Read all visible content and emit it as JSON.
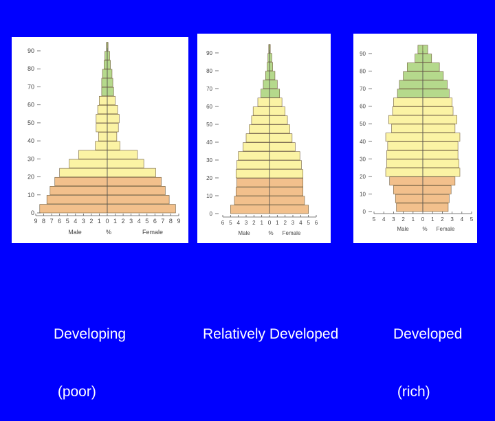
{
  "colors": {
    "background": "#0000ff",
    "panel": "#ffffff",
    "band_young": "#f2c08c",
    "band_adult": "#fbf3a4",
    "band_old": "#b5d98c",
    "outline": "#6e5a3a",
    "caption": "#ffffff"
  },
  "captions": [
    {
      "line1": "Developing",
      "line2": " (poor)"
    },
    {
      "line1": "Relatively Developed",
      "line2": ""
    },
    {
      "line1": "Developed",
      "line2": " (rich)"
    }
  ],
  "chart_data": [
    {
      "type": "bar",
      "orientation": "horizontal-population-pyramid",
      "x_unit": "%",
      "xlabel_left": "Male",
      "xlabel_center": "%",
      "xlabel_right": "Female",
      "x_ticks": [
        "9",
        "8",
        "7",
        "6",
        "5",
        "4",
        "3",
        "2",
        "1",
        "0",
        "1",
        "2",
        "3",
        "4",
        "5",
        "6",
        "7",
        "8",
        "9"
      ],
      "y_ticks": [
        "0",
        "10",
        "20",
        "30",
        "40",
        "50",
        "60",
        "70",
        "80",
        "90"
      ],
      "xlim": [
        -9,
        9
      ],
      "ylim": [
        0,
        90
      ],
      "age_groups": [
        "0-4",
        "5-9",
        "10-14",
        "15-19",
        "20-24",
        "25-29",
        "30-34",
        "35-39",
        "40-44",
        "45-49",
        "50-54",
        "55-59",
        "60-64",
        "65-69",
        "70-74",
        "75-79",
        "80-84",
        "85-89",
        "90+"
      ],
      "series": [
        {
          "name": "Male",
          "values": [
            8.5,
            7.6,
            7.2,
            6.6,
            6.0,
            4.8,
            3.6,
            1.5,
            1.1,
            1.4,
            1.4,
            1.2,
            1.0,
            0.7,
            0.7,
            0.6,
            0.4,
            0.3,
            0.1
          ]
        },
        {
          "name": "Female",
          "values": [
            8.6,
            7.8,
            7.3,
            6.8,
            6.1,
            4.6,
            3.8,
            1.6,
            1.2,
            1.4,
            1.5,
            1.3,
            1.0,
            0.8,
            0.7,
            0.6,
            0.4,
            0.3,
            0.1
          ]
        }
      ]
    },
    {
      "type": "bar",
      "orientation": "horizontal-population-pyramid",
      "x_unit": "%",
      "xlabel_left": "Male",
      "xlabel_center": "%",
      "xlabel_right": "Female",
      "x_ticks": [
        "6",
        "5",
        "4",
        "3",
        "2",
        "1",
        "0",
        "1",
        "2",
        "3",
        "4",
        "5",
        "6"
      ],
      "y_ticks": [
        "0",
        "10",
        "20",
        "30",
        "40",
        "50",
        "60",
        "70",
        "80",
        "90"
      ],
      "xlim": [
        -6,
        6
      ],
      "ylim": [
        0,
        90
      ],
      "age_groups": [
        "0-4",
        "5-9",
        "10-14",
        "15-19",
        "20-24",
        "25-29",
        "30-34",
        "35-39",
        "40-44",
        "45-49",
        "50-54",
        "55-59",
        "60-64",
        "65-69",
        "70-74",
        "75-79",
        "80-84",
        "85-89",
        "90+"
      ],
      "series": [
        {
          "name": "Male",
          "values": [
            5.0,
            4.5,
            4.3,
            4.2,
            4.3,
            4.2,
            4.0,
            3.4,
            3.0,
            2.6,
            2.3,
            2.1,
            1.5,
            1.1,
            0.8,
            0.5,
            0.3,
            0.2,
            0.1
          ]
        },
        {
          "name": "Female",
          "values": [
            5.0,
            4.5,
            4.3,
            4.3,
            4.3,
            4.1,
            3.9,
            3.3,
            2.9,
            2.6,
            2.3,
            2.0,
            1.6,
            1.3,
            1.0,
            0.7,
            0.4,
            0.3,
            0.1
          ]
        }
      ]
    },
    {
      "type": "bar",
      "orientation": "horizontal-population-pyramid",
      "x_unit": "%",
      "xlabel_left": "Male",
      "xlabel_center": "%",
      "xlabel_right": "Female",
      "x_ticks": [
        "5",
        "4",
        "3",
        "2",
        "1",
        "0",
        "1",
        "2",
        "3",
        "4",
        "5"
      ],
      "y_ticks": [
        "0",
        "10",
        "20",
        "30",
        "40",
        "50",
        "60",
        "70",
        "80",
        "90"
      ],
      "xlim": [
        -5,
        5
      ],
      "ylim": [
        0,
        90
      ],
      "age_groups": [
        "0-4",
        "5-9",
        "10-14",
        "15-19",
        "20-24",
        "25-29",
        "30-34",
        "35-39",
        "40-44",
        "45-49",
        "50-54",
        "55-59",
        "60-64",
        "65-69",
        "70-74",
        "75-79",
        "80-84",
        "85-89",
        "90+"
      ],
      "series": [
        {
          "name": "Male",
          "values": [
            2.7,
            2.8,
            3.0,
            3.4,
            3.8,
            3.7,
            3.7,
            3.6,
            3.8,
            3.2,
            3.5,
            3.1,
            3.0,
            2.6,
            2.4,
            2.0,
            1.6,
            0.8,
            0.5
          ]
        },
        {
          "name": "Female",
          "values": [
            2.6,
            2.7,
            2.9,
            3.3,
            3.8,
            3.7,
            3.6,
            3.6,
            3.8,
            3.3,
            3.5,
            3.1,
            3.0,
            2.7,
            2.5,
            2.1,
            1.7,
            0.9,
            0.5
          ]
        }
      ]
    }
  ]
}
